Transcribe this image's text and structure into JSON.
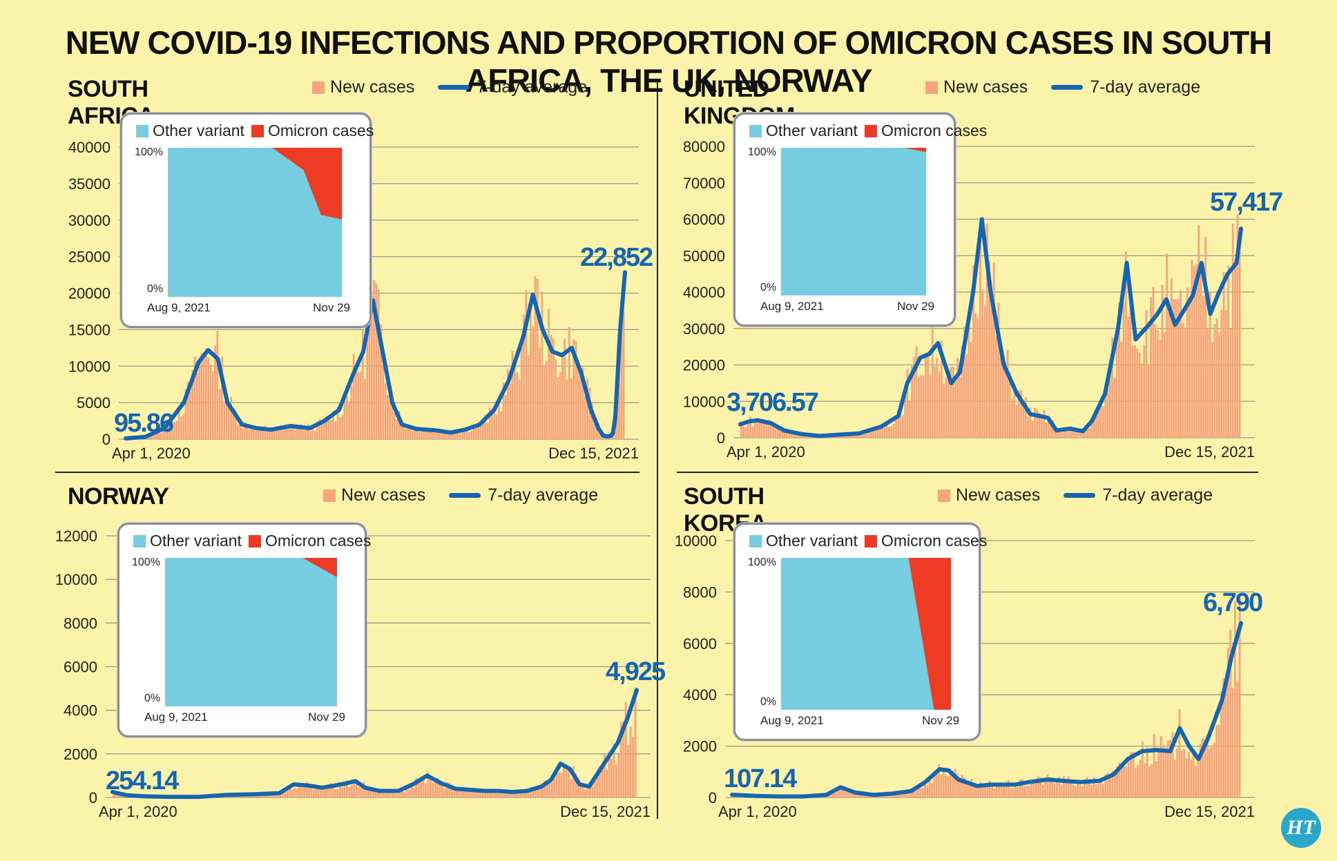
{
  "title": "NEW COVID-19 INFECTIONS AND PROPORTION OF OMICRON CASES IN SOUTH AFRICA, THE UK, NORWAY",
  "legend": {
    "new_cases": "New cases",
    "avg": "7-day average"
  },
  "inset_legend": {
    "other": "Other variant",
    "omicron": "Omicron cases",
    "top": "100%",
    "bottom": "0%",
    "start": "Aug 9, 2021",
    "end": "Nov 29"
  },
  "logo": "HT",
  "colors": {
    "background": "#fbf3a9",
    "bars": "#f7a57c",
    "line": "#1565b0",
    "other_variant": "#76cde0",
    "omicron": "#ee3c24"
  },
  "chart_data": [
    {
      "type": "bar+line",
      "title": "SOUTH AFRICA",
      "x_start": "Apr 1, 2020",
      "x_end": "Dec 15, 2021",
      "ylim": [
        0,
        40000
      ],
      "yticks": [
        "0",
        "5000",
        "10000",
        "15000",
        "20000",
        "25000",
        "30000",
        "35000",
        "40000"
      ],
      "start_label": "95.86",
      "end_label": "22,852",
      "avg_points": [
        [
          0,
          96
        ],
        [
          0.04,
          300
        ],
        [
          0.08,
          1500
        ],
        [
          0.12,
          5000
        ],
        [
          0.15,
          10500
        ],
        [
          0.17,
          12200
        ],
        [
          0.19,
          11000
        ],
        [
          0.21,
          5000
        ],
        [
          0.24,
          2000
        ],
        [
          0.27,
          1500
        ],
        [
          0.3,
          1300
        ],
        [
          0.34,
          1800
        ],
        [
          0.38,
          1500
        ],
        [
          0.41,
          2500
        ],
        [
          0.44,
          4000
        ],
        [
          0.47,
          9000
        ],
        [
          0.49,
          12000
        ],
        [
          0.51,
          19000
        ],
        [
          0.53,
          12000
        ],
        [
          0.55,
          5000
        ],
        [
          0.57,
          2000
        ],
        [
          0.6,
          1400
        ],
        [
          0.64,
          1200
        ],
        [
          0.67,
          900
        ],
        [
          0.7,
          1300
        ],
        [
          0.73,
          2000
        ],
        [
          0.76,
          4000
        ],
        [
          0.79,
          8000
        ],
        [
          0.82,
          14000
        ],
        [
          0.84,
          19800
        ],
        [
          0.86,
          15000
        ],
        [
          0.88,
          12000
        ],
        [
          0.9,
          11500
        ],
        [
          0.92,
          12500
        ],
        [
          0.94,
          9000
        ],
        [
          0.96,
          4000
        ],
        [
          0.975,
          1500
        ],
        [
          0.985,
          500
        ],
        [
          0.99,
          400
        ],
        [
          1.0,
          400
        ],
        [
          1.005,
          800
        ],
        [
          1.01,
          3000
        ],
        [
          1.02,
          15000
        ],
        [
          1.03,
          22852
        ]
      ],
      "omicron_pct": [
        [
          0,
          0
        ],
        [
          0.6,
          0
        ],
        [
          0.78,
          15
        ],
        [
          0.88,
          45
        ],
        [
          1,
          48
        ]
      ]
    },
    {
      "type": "bar+line",
      "title": "UNITED KINGDOM",
      "x_start": "Apr 1, 2020",
      "x_end": "Dec 15, 2021",
      "ylim": [
        0,
        80000
      ],
      "yticks": [
        "0",
        "10000",
        "20000",
        "30000",
        "40000",
        "50000",
        "60000",
        "70000",
        "80000"
      ],
      "start_label": "3,706.57",
      "end_label": "57,417",
      "avg_points": [
        [
          0,
          3707
        ],
        [
          0.02,
          4500
        ],
        [
          0.04,
          4800
        ],
        [
          0.07,
          4000
        ],
        [
          0.1,
          2000
        ],
        [
          0.14,
          1000
        ],
        [
          0.18,
          500
        ],
        [
          0.22,
          800
        ],
        [
          0.27,
          1200
        ],
        [
          0.32,
          3000
        ],
        [
          0.36,
          6000
        ],
        [
          0.38,
          15000
        ],
        [
          0.41,
          22000
        ],
        [
          0.43,
          23000
        ],
        [
          0.45,
          26000
        ],
        [
          0.48,
          15000
        ],
        [
          0.5,
          18000
        ],
        [
          0.53,
          40000
        ],
        [
          0.55,
          60000
        ],
        [
          0.57,
          40000
        ],
        [
          0.6,
          20000
        ],
        [
          0.63,
          12000
        ],
        [
          0.66,
          6500
        ],
        [
          0.7,
          5500
        ],
        [
          0.72,
          2000
        ],
        [
          0.75,
          2500
        ],
        [
          0.78,
          1800
        ],
        [
          0.8,
          4500
        ],
        [
          0.83,
          12000
        ],
        [
          0.86,
          30000
        ],
        [
          0.88,
          48000
        ],
        [
          0.9,
          27000
        ],
        [
          0.93,
          31000
        ],
        [
          0.95,
          34000
        ],
        [
          0.97,
          38000
        ],
        [
          0.99,
          31000
        ],
        [
          1.01,
          35000
        ],
        [
          1.03,
          39000
        ],
        [
          1.05,
          48000
        ],
        [
          1.07,
          34000
        ],
        [
          1.09,
          40000
        ],
        [
          1.11,
          45000
        ],
        [
          1.13,
          48000
        ],
        [
          1.14,
          57417
        ]
      ],
      "omicron_pct": [
        [
          0,
          0
        ],
        [
          0.85,
          0
        ],
        [
          1,
          3
        ]
      ]
    },
    {
      "type": "bar+line",
      "title": "NORWAY",
      "x_start": "Apr 1, 2020",
      "x_end": "Dec 15, 2021",
      "ylim": [
        0,
        12000
      ],
      "yticks": [
        "0",
        "2000",
        "4000",
        "6000",
        "8000",
        "10000",
        "12000"
      ],
      "start_label": "254.14",
      "end_label": "4,925",
      "avg_points": [
        [
          0,
          254
        ],
        [
          0.03,
          100
        ],
        [
          0.07,
          50
        ],
        [
          0.12,
          30
        ],
        [
          0.18,
          30
        ],
        [
          0.24,
          120
        ],
        [
          0.3,
          150
        ],
        [
          0.35,
          200
        ],
        [
          0.38,
          600
        ],
        [
          0.41,
          550
        ],
        [
          0.44,
          450
        ],
        [
          0.48,
          600
        ],
        [
          0.51,
          750
        ],
        [
          0.53,
          450
        ],
        [
          0.56,
          300
        ],
        [
          0.6,
          300
        ],
        [
          0.63,
          600
        ],
        [
          0.66,
          1000
        ],
        [
          0.69,
          650
        ],
        [
          0.72,
          400
        ],
        [
          0.75,
          350
        ],
        [
          0.78,
          300
        ],
        [
          0.81,
          300
        ],
        [
          0.84,
          250
        ],
        [
          0.87,
          300
        ],
        [
          0.9,
          500
        ],
        [
          0.92,
          800
        ],
        [
          0.94,
          1550
        ],
        [
          0.96,
          1300
        ],
        [
          0.98,
          600
        ],
        [
          1.0,
          500
        ],
        [
          1.03,
          1500
        ],
        [
          1.06,
          2500
        ],
        [
          1.08,
          3600
        ],
        [
          1.1,
          4925
        ]
      ],
      "omicron_pct": [
        [
          0,
          0
        ],
        [
          0.8,
          0
        ],
        [
          1,
          13
        ]
      ]
    },
    {
      "type": "bar+line",
      "title": "SOUTH KOREA",
      "x_start": "Apr 1, 2020",
      "x_end": "Dec 15, 2021",
      "ylim": [
        0,
        10000
      ],
      "yticks": [
        "0",
        "2000",
        "4000",
        "6000",
        "8000",
        "10000"
      ],
      "start_label": "107.14",
      "end_label": "6,790",
      "avg_points": [
        [
          0,
          107
        ],
        [
          0.05,
          60
        ],
        [
          0.1,
          40
        ],
        [
          0.15,
          40
        ],
        [
          0.2,
          100
        ],
        [
          0.23,
          400
        ],
        [
          0.26,
          200
        ],
        [
          0.3,
          100
        ],
        [
          0.34,
          150
        ],
        [
          0.38,
          250
        ],
        [
          0.41,
          600
        ],
        [
          0.44,
          1100
        ],
        [
          0.46,
          1050
        ],
        [
          0.48,
          700
        ],
        [
          0.52,
          450
        ],
        [
          0.55,
          500
        ],
        [
          0.6,
          500
        ],
        [
          0.63,
          600
        ],
        [
          0.67,
          700
        ],
        [
          0.7,
          650
        ],
        [
          0.74,
          600
        ],
        [
          0.78,
          650
        ],
        [
          0.81,
          900
        ],
        [
          0.84,
          1500
        ],
        [
          0.87,
          1800
        ],
        [
          0.9,
          1850
        ],
        [
          0.93,
          1800
        ],
        [
          0.95,
          2700
        ],
        [
          0.97,
          2000
        ],
        [
          0.99,
          1500
        ],
        [
          1.01,
          2300
        ],
        [
          1.04,
          3800
        ],
        [
          1.06,
          5500
        ],
        [
          1.08,
          6790
        ]
      ],
      "omicron_pct": [
        [
          0,
          0
        ],
        [
          0.75,
          0
        ],
        [
          0.9,
          100
        ],
        [
          1,
          100
        ]
      ]
    }
  ]
}
